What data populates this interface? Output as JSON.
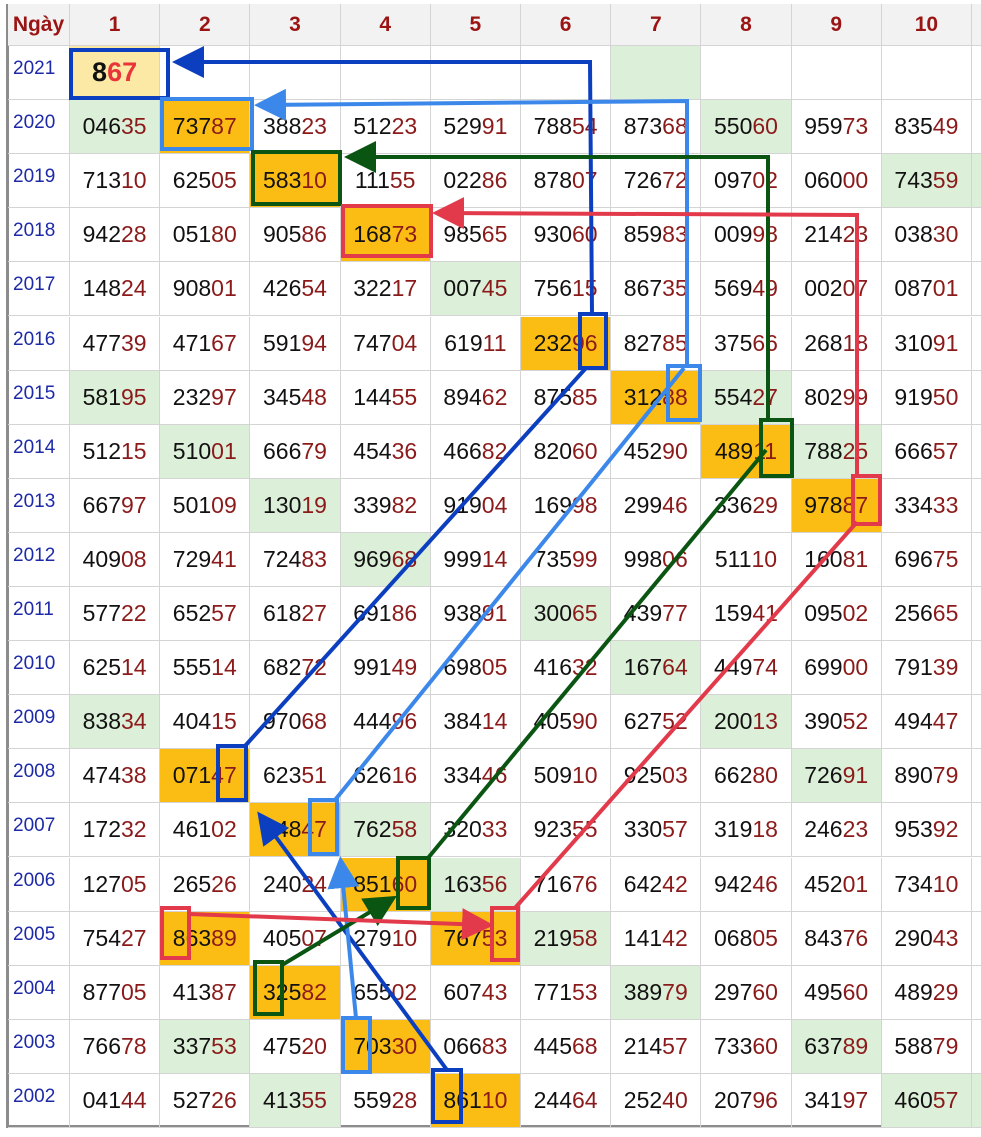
{
  "table": {
    "header": [
      "Ngày",
      "1",
      "2",
      "3",
      "4",
      "5",
      "6",
      "7",
      "8",
      "9",
      "10"
    ],
    "rows": [
      {
        "year": "2021",
        "cells": [
          "867",
          null,
          null,
          null,
          null,
          null,
          null,
          null,
          null,
          null
        ]
      },
      {
        "year": "2020",
        "cells": [
          "04635",
          "73787",
          "38823",
          "51223",
          "52991",
          "78854",
          "87368",
          "55060",
          "95973",
          "83549"
        ]
      },
      {
        "year": "2019",
        "cells": [
          "71310",
          "62505",
          "58310",
          "11155",
          "02286",
          "87807",
          "72672",
          "09702",
          "06000",
          "74359"
        ]
      },
      {
        "year": "2018",
        "cells": [
          "94228",
          "05180",
          "90586",
          "16873",
          "98565",
          "93060",
          "85983",
          "00998",
          "21423",
          "03830"
        ]
      },
      {
        "year": "2017",
        "cells": [
          "14824",
          "90801",
          "42654",
          "32217",
          "00745",
          "75615",
          "86735",
          "56949",
          "00207",
          "08701"
        ]
      },
      {
        "year": "2016",
        "cells": [
          "47739",
          "47167",
          "59194",
          "74704",
          "61911",
          "23296",
          "82785",
          "37566",
          "26818",
          "31091"
        ]
      },
      {
        "year": "2015",
        "cells": [
          "58195",
          "23297",
          "34548",
          "14455",
          "89462",
          "87585",
          "31288",
          "55427",
          "80299",
          "91950"
        ]
      },
      {
        "year": "2014",
        "cells": [
          "51215",
          "51001",
          "66679",
          "45436",
          "46682",
          "82060",
          "45290",
          "48911",
          "78825",
          "66657"
        ]
      },
      {
        "year": "2013",
        "cells": [
          "66797",
          "50109",
          "13019",
          "33982",
          "91904",
          "16998",
          "29946",
          "33629",
          "97887",
          "33433"
        ]
      },
      {
        "year": "2012",
        "cells": [
          "40908",
          "72941",
          "72483",
          "96968",
          "99914",
          "73599",
          "99806",
          "51110",
          "16081",
          "69675"
        ]
      },
      {
        "year": "2011",
        "cells": [
          "57722",
          "65257",
          "61827",
          "69186",
          "93891",
          "30065",
          "43977",
          "15941",
          "09502",
          "25665"
        ]
      },
      {
        "year": "2010",
        "cells": [
          "62514",
          "55514",
          "68272",
          "99149",
          "69805",
          "41632",
          "16764",
          "44974",
          "69900",
          "79139"
        ]
      },
      {
        "year": "2009",
        "cells": [
          "83834",
          "40415",
          "97068",
          "44496",
          "38414",
          "40590",
          "62752",
          "20013",
          "39052",
          "49447"
        ]
      },
      {
        "year": "2008",
        "cells": [
          "47438",
          "07147",
          "62351",
          "62616",
          "33446",
          "50910",
          "92503",
          "66280",
          "72691",
          "89079"
        ]
      },
      {
        "year": "2007",
        "cells": [
          "17232",
          "46102",
          "44847",
          "76258",
          "32033",
          "92355",
          "33057",
          "31918",
          "24623",
          "95392"
        ]
      },
      {
        "year": "2006",
        "cells": [
          "12705",
          "26526",
          "24024",
          "85160",
          "16356",
          "71676",
          "64242",
          "94246",
          "45201",
          "73410"
        ]
      },
      {
        "year": "2005",
        "cells": [
          "75427",
          "86389",
          "40507",
          "27910",
          "76753",
          "21958",
          "14142",
          "06805",
          "84376",
          "29043"
        ]
      },
      {
        "year": "2004",
        "cells": [
          "87705",
          "41387",
          "32582",
          "65502",
          "60743",
          "77153",
          "38979",
          "29760",
          "49560",
          "48929"
        ]
      },
      {
        "year": "2003",
        "cells": [
          "76678",
          "33753",
          "47520",
          "70330",
          "06683",
          "44568",
          "21457",
          "73360",
          "63789",
          "58879"
        ]
      },
      {
        "year": "2002",
        "cells": [
          "04144",
          "52726",
          "41355",
          "55928",
          "86110",
          "24464",
          "25240",
          "20796",
          "34197",
          "46057"
        ]
      }
    ]
  }
}
